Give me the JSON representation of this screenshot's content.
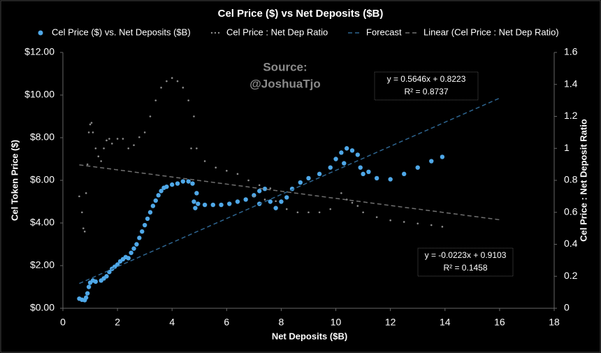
{
  "chart_data": {
    "type": "scatter",
    "title": "Cel Price ($) vs Net Deposits ($B)",
    "xlabel": "Net Deposits ($B)",
    "ylabel": "Cel Token Price ($)",
    "y2label": "Cel Price : Net Deposit Ratio",
    "xlim": [
      0,
      18
    ],
    "xticks": [
      0,
      2,
      4,
      6,
      8,
      10,
      12,
      14,
      16,
      18
    ],
    "ylim": [
      0,
      12
    ],
    "yticks": [
      {
        "value": 0,
        "label": "$0.00"
      },
      {
        "value": 2,
        "label": "$2.00"
      },
      {
        "value": 4,
        "label": "$4.00"
      },
      {
        "value": 6,
        "label": "$6.00"
      },
      {
        "value": 8,
        "label": "$8.00"
      },
      {
        "value": 10,
        "label": "$10.00"
      },
      {
        "value": 12,
        "label": "$12.00"
      }
    ],
    "y2lim": [
      0,
      1.6
    ],
    "y2ticks": [
      0,
      0.2,
      0.4,
      0.6,
      0.8,
      1,
      1.2,
      1.4,
      1.6
    ],
    "grid": false,
    "legend": "top",
    "series": [
      {
        "name": "Cel Price ($) vs. Net Deposits ($B)",
        "color": "#4fa8e8",
        "marker": "dot",
        "x": [
          0.6,
          0.7,
          0.8,
          0.85,
          0.9,
          0.95,
          1.0,
          1.1,
          1.2,
          1.4,
          1.5,
          1.6,
          1.7,
          1.8,
          1.9,
          2.0,
          2.1,
          2.2,
          2.3,
          2.4,
          2.5,
          2.6,
          2.7,
          2.8,
          2.9,
          3.0,
          3.1,
          3.2,
          3.3,
          3.4,
          3.5,
          3.6,
          3.7,
          3.8,
          4.0,
          4.2,
          4.4,
          4.6,
          4.75,
          4.8,
          4.85,
          4.9,
          4.95,
          5.2,
          5.5,
          5.8,
          6.1,
          6.4,
          6.7,
          7.0,
          7.2,
          7.4,
          7.2,
          7.6,
          7.8,
          8.0,
          8.2,
          8.4,
          8.7,
          9.0,
          9.4,
          9.8,
          10.0,
          10.2,
          10.4,
          10.6,
          10.8,
          10.3,
          10.9,
          11.0,
          11.2,
          11.5,
          12.0,
          12.5,
          13.0,
          13.5,
          13.9
        ],
        "values": [
          0.45,
          0.4,
          0.38,
          0.5,
          0.7,
          1.0,
          1.2,
          1.3,
          1.25,
          1.3,
          1.4,
          1.5,
          1.7,
          1.85,
          1.95,
          2.05,
          2.2,
          2.3,
          2.4,
          2.35,
          2.6,
          2.8,
          3.0,
          3.3,
          3.6,
          3.9,
          4.2,
          4.5,
          4.8,
          5.05,
          5.3,
          5.5,
          5.65,
          5.7,
          5.8,
          5.85,
          5.95,
          5.95,
          5.85,
          5.0,
          4.7,
          5.4,
          4.9,
          4.85,
          4.85,
          4.85,
          4.9,
          5.0,
          5.1,
          5.3,
          5.5,
          5.6,
          4.9,
          5.0,
          4.7,
          5.0,
          5.2,
          5.6,
          5.9,
          6.1,
          6.3,
          6.6,
          7.0,
          7.3,
          7.5,
          7.4,
          7.2,
          6.8,
          6.6,
          6.3,
          6.4,
          6.1,
          6.05,
          6.3,
          6.6,
          6.9,
          7.1
        ]
      },
      {
        "name": "Cel Price : Net Dep Ratio",
        "color": "#8c8c8c",
        "marker": "small-dot",
        "axis": "y2",
        "x": [
          0.6,
          0.7,
          0.75,
          0.8,
          0.85,
          0.9,
          0.95,
          1.0,
          1.05,
          1.1,
          1.2,
          1.3,
          1.4,
          1.5,
          1.6,
          1.7,
          1.8,
          2.0,
          2.2,
          2.4,
          2.6,
          2.8,
          3.0,
          3.2,
          3.4,
          3.6,
          3.8,
          4.0,
          4.2,
          4.4,
          4.6,
          4.8,
          4.7,
          4.9,
          5.2,
          5.6,
          6.0,
          6.4,
          6.8,
          7.2,
          7.6,
          7.0,
          7.4,
          7.8,
          8.2,
          8.6,
          9.0,
          9.4,
          9.8,
          10.2,
          10.4,
          10.6,
          10.8,
          11.0,
          11.5,
          12.0,
          12.5,
          13.0,
          13.5,
          13.9
        ],
        "values": [
          0.7,
          0.6,
          0.5,
          0.48,
          0.72,
          0.9,
          1.1,
          1.15,
          1.16,
          1.1,
          1.0,
          0.95,
          0.92,
          1.0,
          1.05,
          1.06,
          1.03,
          1.06,
          1.06,
          1.0,
          1.02,
          1.07,
          1.1,
          1.2,
          1.3,
          1.38,
          1.42,
          1.44,
          1.42,
          1.38,
          1.3,
          1.2,
          1.0,
          1.0,
          0.92,
          0.88,
          0.86,
          0.84,
          0.8,
          0.77,
          0.75,
          0.7,
          0.68,
          0.67,
          0.62,
          0.6,
          0.6,
          0.6,
          0.62,
          0.72,
          0.68,
          0.66,
          0.64,
          0.6,
          0.57,
          0.55,
          0.54,
          0.53,
          0.52,
          0.51
        ]
      },
      {
        "name": "Forecast",
        "color": "#2e6590",
        "marker": "dashed-line",
        "x": [
          0.6,
          16
        ],
        "values": [
          1.161,
          9.856
        ]
      },
      {
        "name": "Linear (Cel Price : Net Dep Ratio)",
        "color": "#707070",
        "marker": "dashed-line",
        "axis": "y2",
        "x": [
          0.6,
          16
        ],
        "values": [
          0.8969,
          0.5535
        ]
      }
    ],
    "annotations": [
      {
        "lines": [
          "Source:",
          "@JoshuaTjo"
        ]
      },
      {
        "lines": [
          "y = 0.5646x + 0.8223",
          "R² = 0.8737"
        ]
      },
      {
        "lines": [
          "y = -0.0223x + 0.9103",
          "R² = 0.1458"
        ]
      }
    ]
  }
}
